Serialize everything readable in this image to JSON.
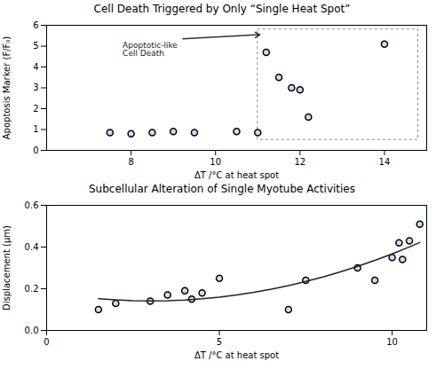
{
  "chart_data": [
    {
      "type": "scatter",
      "title": "Cell Death Triggered by Only “Single Heat Spot”",
      "xlabel": "ΔT /°C at heat spot",
      "ylabel": "Apoptosis Marker (F/F₀)",
      "series": [
        {
          "type": "scatter",
          "x": [
            7.5,
            8.0,
            8.5,
            9.0,
            9.5,
            10.5,
            11.0,
            11.2,
            11.5,
            11.8,
            12.0,
            12.2,
            14.0
          ],
          "values": [
            0.85,
            0.8,
            0.85,
            0.9,
            0.85,
            0.9,
            0.85,
            4.7,
            3.5,
            3.0,
            2.9,
            1.6,
            5.1
          ],
          "color": "#c8dff0"
        }
      ],
      "xlim": [
        6,
        15
      ],
      "ylim": [
        0,
        6
      ],
      "xticks": [
        8,
        10,
        12,
        14
      ],
      "yticks": [
        0,
        1,
        2,
        3,
        4,
        5,
        6
      ],
      "region": {
        "x": [
          11.0,
          14.8
        ],
        "y": [
          0.5,
          5.8
        ],
        "line_style": "dashed"
      },
      "annotations": [
        {
          "text": "Apoptotic-like\nCell Death",
          "x": 7.8,
          "y": 5.2,
          "arrow_x": 11.05,
          "arrow_y": 5.55
        }
      ]
    },
    {
      "type": "scatter",
      "title": "Subcellular Alteration of Single Myotube Activities",
      "xlabel": "ΔT /°C at heat spot",
      "ylabel": "Displacement (μm)",
      "series": [
        {
          "type": "scatter",
          "x": [
            1.5,
            2.0,
            3.0,
            3.5,
            4.0,
            4.2,
            4.5,
            5.0,
            7.0,
            7.5,
            9.0,
            9.5,
            10.0,
            10.2,
            10.3,
            10.5,
            10.8
          ],
          "values": [
            0.1,
            0.13,
            0.14,
            0.17,
            0.19,
            0.15,
            0.18,
            0.25,
            0.1,
            0.24,
            0.3,
            0.24,
            0.35,
            0.42,
            0.34,
            0.43,
            0.51
          ],
          "color": "#c8dff0"
        },
        {
          "type": "line",
          "x": [
            1.5,
            2.0,
            2.5,
            3.0,
            3.5,
            4.0,
            4.5,
            5.0,
            5.5,
            6.0,
            6.5,
            7.0,
            7.5,
            8.0,
            8.5,
            9.0,
            9.5,
            10.0,
            10.5,
            10.8
          ],
          "values": [
            0.1523,
            0.1464,
            0.1429,
            0.1417,
            0.1428,
            0.1462,
            0.1519,
            0.16,
            0.1703,
            0.1829,
            0.1979,
            0.2152,
            0.2347,
            0.2566,
            0.281,
            0.3073,
            0.3361,
            0.3672,
            0.4007,
            0.4218
          ],
          "color": "#222222"
        }
      ],
      "xlim": [
        0,
        11
      ],
      "ylim": [
        0,
        0.6
      ],
      "xticks": [
        0,
        5,
        10
      ],
      "yticks": [
        {
          "value": 0,
          "label": "0.0"
        },
        0.2,
        0.4,
        0.6
      ]
    }
  ]
}
